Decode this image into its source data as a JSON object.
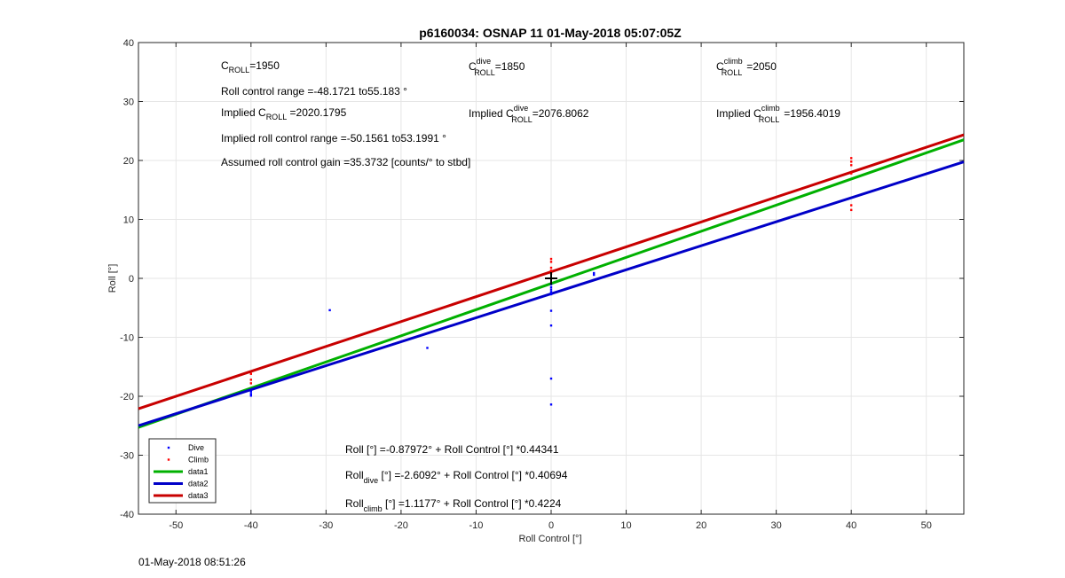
{
  "chart_data": {
    "type": "scatter",
    "title": "p6160034: OSNAP 11 01-May-2018 05:07:05Z",
    "xlabel": "Roll Control [°]",
    "ylabel": "Roll [°]",
    "xlim": [
      -55,
      55
    ],
    "ylim": [
      -40,
      40
    ],
    "xticks": [
      -50,
      -40,
      -30,
      -20,
      -10,
      0,
      10,
      20,
      30,
      40,
      50
    ],
    "yticks": [
      -40,
      -30,
      -20,
      -10,
      0,
      10,
      20,
      30,
      40
    ],
    "grid": true,
    "legend_position": "bottom-left",
    "series": [
      {
        "name": "Dive",
        "kind": "points",
        "color": "#0000ff",
        "points": [
          [
            -40,
            -19.2
          ],
          [
            -40,
            -19.6
          ],
          [
            -40,
            -19.9
          ],
          [
            -29.5,
            -5.4
          ],
          [
            -16.5,
            -11.8
          ],
          [
            0,
            -1.0
          ],
          [
            0,
            -1.5
          ],
          [
            0,
            -1.9
          ],
          [
            0,
            -2.3
          ],
          [
            0,
            -2.7
          ],
          [
            0,
            -5.5
          ],
          [
            0,
            -8.0
          ],
          [
            0,
            -17.0
          ],
          [
            0,
            -21.4
          ],
          [
            5.7,
            0.6
          ],
          [
            5.7,
            0.9
          ]
        ]
      },
      {
        "name": "Climb",
        "kind": "points",
        "color": "#ff0000",
        "points": [
          [
            -40,
            -16.2
          ],
          [
            -40,
            -17.2
          ],
          [
            -40,
            -17.8
          ],
          [
            0,
            3.3
          ],
          [
            0,
            2.8
          ],
          [
            0,
            1.8
          ],
          [
            0,
            1.3
          ],
          [
            0,
            0.8
          ],
          [
            40,
            20.4
          ],
          [
            40,
            19.8
          ],
          [
            40,
            19.2
          ],
          [
            40,
            17.8
          ],
          [
            40,
            12.4
          ],
          [
            40,
            11.6
          ]
        ]
      },
      {
        "name": "data1",
        "kind": "line",
        "color": "#00b000",
        "intercept": -0.87972,
        "slope": 0.44341
      },
      {
        "name": "data2",
        "kind": "line",
        "color": "#0000c8",
        "intercept": -2.6092,
        "slope": 0.40694
      },
      {
        "name": "data3",
        "kind": "line",
        "color": "#c80000",
        "intercept": 1.1177,
        "slope": 0.4224
      }
    ],
    "marker": {
      "x": 0,
      "y": 0,
      "symbol": "+"
    }
  },
  "annotations": {
    "croll_base": "C",
    "croll_sub": "ROLL",
    "croll_val": "=1950",
    "cdive_base": "C",
    "cdive_sup": "dive",
    "cdive_sub": "ROLL",
    "cdive_val": "=1850",
    "cclimb_base": "C",
    "cclimb_sup": "climb",
    "cclimb_sub": "ROLL",
    "cclimb_val": "=2050",
    "range": "Roll control range =-48.1721 to55.183 °",
    "implied_prefix": "Implied C",
    "implied_sub": "ROLL",
    "implied_val": " =2020.1795",
    "implied_dive_prefix": "Implied C",
    "implied_dive_sup": "dive",
    "implied_dive_sub": "ROLL",
    "implied_dive_val": "=2076.8062",
    "implied_climb_prefix": "Implied C",
    "implied_climb_sup": "climb",
    "implied_climb_sub": "ROLL",
    "implied_climb_val": "=1956.4019",
    "implied_range": "Implied roll control range =-50.1561 to53.1991 °",
    "gain": "Assumed roll control gain =35.3732 [counts/° to stbd]",
    "eq1": "Roll [°] =-0.87972° + Roll Control [°] *0.44341",
    "eq2_base": "Roll",
    "eq2_sub": "dive",
    "eq2_rest": " [°] =-2.6092° + Roll Control [°] *0.40694",
    "eq3_base": "Roll",
    "eq3_sub": "climb",
    "eq3_rest": " [°] =1.1177° + Roll Control [°] *0.4224"
  },
  "footer": "01-May-2018 08:51:26"
}
